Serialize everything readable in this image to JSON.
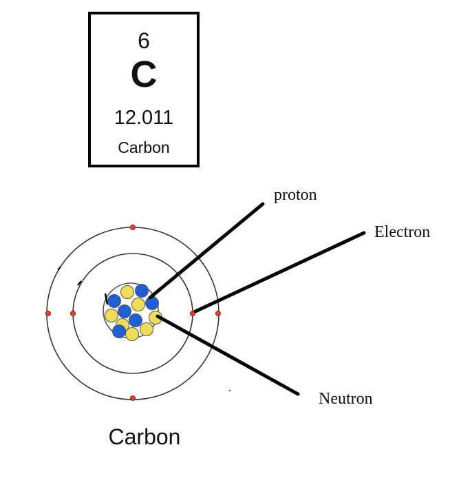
{
  "element_tile": {
    "atomic_number": "6",
    "symbol": "C",
    "atomic_mass": "12.011",
    "name": "Carbon"
  },
  "diagram": {
    "caption": "Carbon",
    "labels": {
      "proton": "proton",
      "electron": "Electron",
      "neutron": "Neutron"
    },
    "colors": {
      "proton": "#1f5fd6",
      "neutron": "#f0dc5a",
      "electron": "#d9442e",
      "shell": "#333333",
      "leader": "#000000"
    },
    "nucleus": {
      "protons": 6,
      "neutrons": 6
    },
    "shells": [
      {
        "electrons": 2
      },
      {
        "electrons": 4
      }
    ]
  }
}
